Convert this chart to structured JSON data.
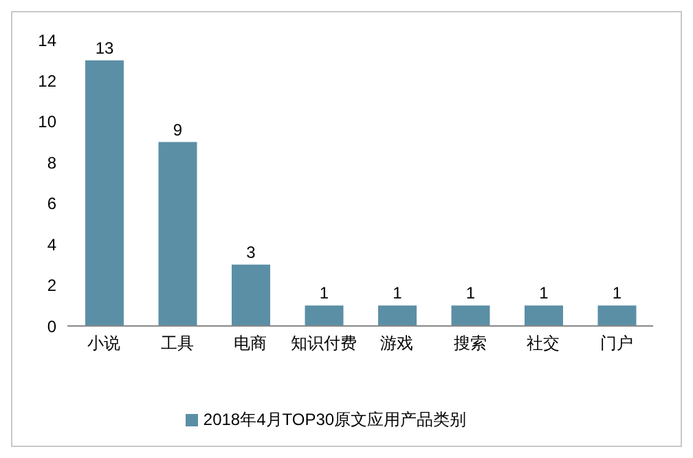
{
  "chart_data": {
    "type": "bar",
    "categories": [
      "小说",
      "工具",
      "电商",
      "知识付费",
      "游戏",
      "搜索",
      "社交",
      "门户"
    ],
    "series": [
      {
        "name": "2018年4月TOP30原文应用产品类别",
        "color": "#5b8fa6",
        "values": [
          13,
          9,
          3,
          1,
          1,
          1,
          1,
          1
        ]
      }
    ],
    "ylim": [
      0,
      14
    ],
    "yticks": [
      0,
      2,
      4,
      6,
      8,
      10,
      12,
      14
    ],
    "grid": false,
    "legend": "bottom",
    "data_labels": true
  }
}
